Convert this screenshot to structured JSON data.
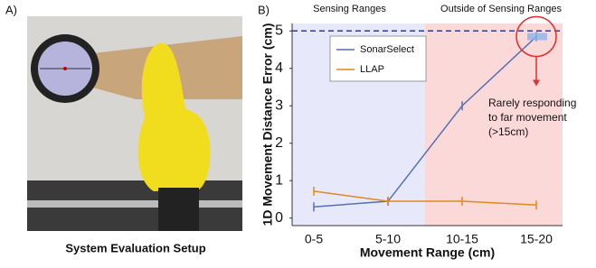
{
  "panel_a": {
    "label": "A)",
    "caption": "System Evaluation Setup"
  },
  "panel_b": {
    "label": "B)"
  },
  "chart_data": {
    "type": "line",
    "x_label": "Movement Range (cm)",
    "y_label": "1D Movement Distance Error (cm)",
    "categories": [
      "0-5",
      "5-10",
      "10-15",
      "15-20"
    ],
    "series": [
      {
        "name": "SonarSelect",
        "color": "#5470b5",
        "values": [
          0.3,
          0.45,
          3.0,
          4.85
        ]
      },
      {
        "name": "LLAP",
        "color": "#e0891c",
        "values": [
          0.72,
          0.45,
          0.45,
          0.35
        ]
      }
    ],
    "ylim": [
      -0.2,
      5.2
    ],
    "yticks": [
      0,
      1,
      2,
      3,
      4,
      5
    ],
    "reference_line": 5,
    "regions": [
      "Sensing Ranges",
      "Outside of Sensing Ranges"
    ],
    "annotation": [
      "Rarely responding",
      "to far movement",
      "(>15cm)"
    ]
  }
}
